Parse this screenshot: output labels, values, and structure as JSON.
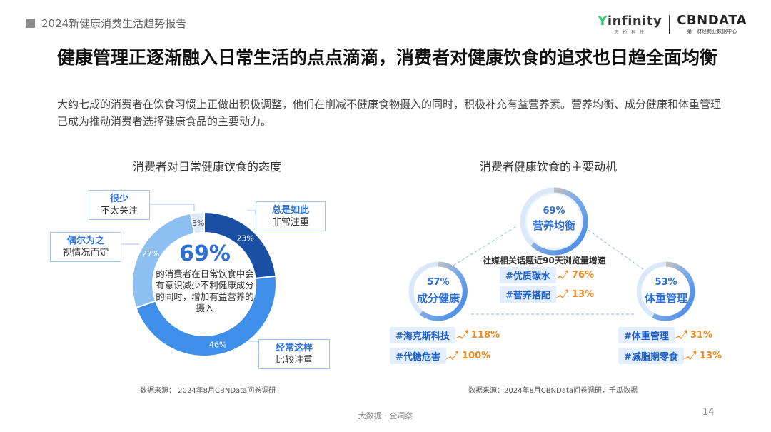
{
  "header": {
    "report_title": "2024新健康消费生活趋势报告"
  },
  "logo": {
    "infinity_text": "infinity",
    "infinity_sub": "忘 桥 科 技",
    "cbn_text": "CBNDATA",
    "cbn_sub": "第一财经商业数据中心"
  },
  "title": "健康管理正逐渐融入日常生活的点点滴滴，消费者对健康饮食的追求也日趋全面均衡",
  "subtitle": "大约七成的消费者在饮食习惯上正做出积极调整，他们在削减不健康食物摄入的同时，积极补充有益营养素。营养均衡、成分健康和体重管理已成为推动消费者选择健康食品的主要动力。",
  "left": {
    "chart_title": "消费者对日常健康饮食的态度",
    "center_value": "69%",
    "center_text": "的消费者在日常饮食中会有意识减少不利健康成分的同时，增加有益营养的摄入",
    "source": "数据来源： 2024年8月CBNData问卷调研",
    "callouts": {
      "always": {
        "strong": "总是如此",
        "weak": "非常注重"
      },
      "often": {
        "strong": "经常这样",
        "weak": "比较注重"
      },
      "sometimes": {
        "strong": "偶尔为之",
        "weak": "视情况而定"
      },
      "rarely": {
        "strong": "很少",
        "weak": "不太关注"
      }
    }
  },
  "chart_data": {
    "type": "pie",
    "title": "消费者对日常健康饮食的态度",
    "categories": [
      "总是如此 非常注重",
      "经常这样 比较注重",
      "偶尔为之 视情况而定",
      "很少 不太关注"
    ],
    "values": [
      23,
      46,
      27,
      3
    ],
    "labels": [
      "23%",
      "46%",
      "27%",
      "3%"
    ],
    "colors": [
      "#1a4fa3",
      "#3f8fe8",
      "#8ebff2",
      "#dce9f8"
    ]
  },
  "right": {
    "chart_title": "消费者健康饮食的主要动机",
    "source": "数据来源：2024年8月CBNData问卷调研，千瓜数据",
    "center_label": "社媒相关话题近90天浏览量增速",
    "circles": {
      "top": {
        "pct": "69%",
        "name": "营养均衡"
      },
      "left": {
        "pct": "57%",
        "name": "成分健康"
      },
      "right": {
        "pct": "53%",
        "name": "体重管理"
      }
    },
    "tags": {
      "t1": {
        "name": "#优质碳水",
        "pct": "76%"
      },
      "t2": {
        "name": "#营养搭配",
        "pct": "13%"
      },
      "l1": {
        "name": "#海克斯科技",
        "pct": "118%"
      },
      "l2": {
        "name": "#代糖危害",
        "pct": "100%"
      },
      "r1": {
        "name": "#体重管理",
        "pct": "31%"
      },
      "r2": {
        "name": "#减脂期零食",
        "pct": "13%"
      }
    }
  },
  "footer": {
    "tagline": "大数据 · 全洞察",
    "page": "14"
  }
}
